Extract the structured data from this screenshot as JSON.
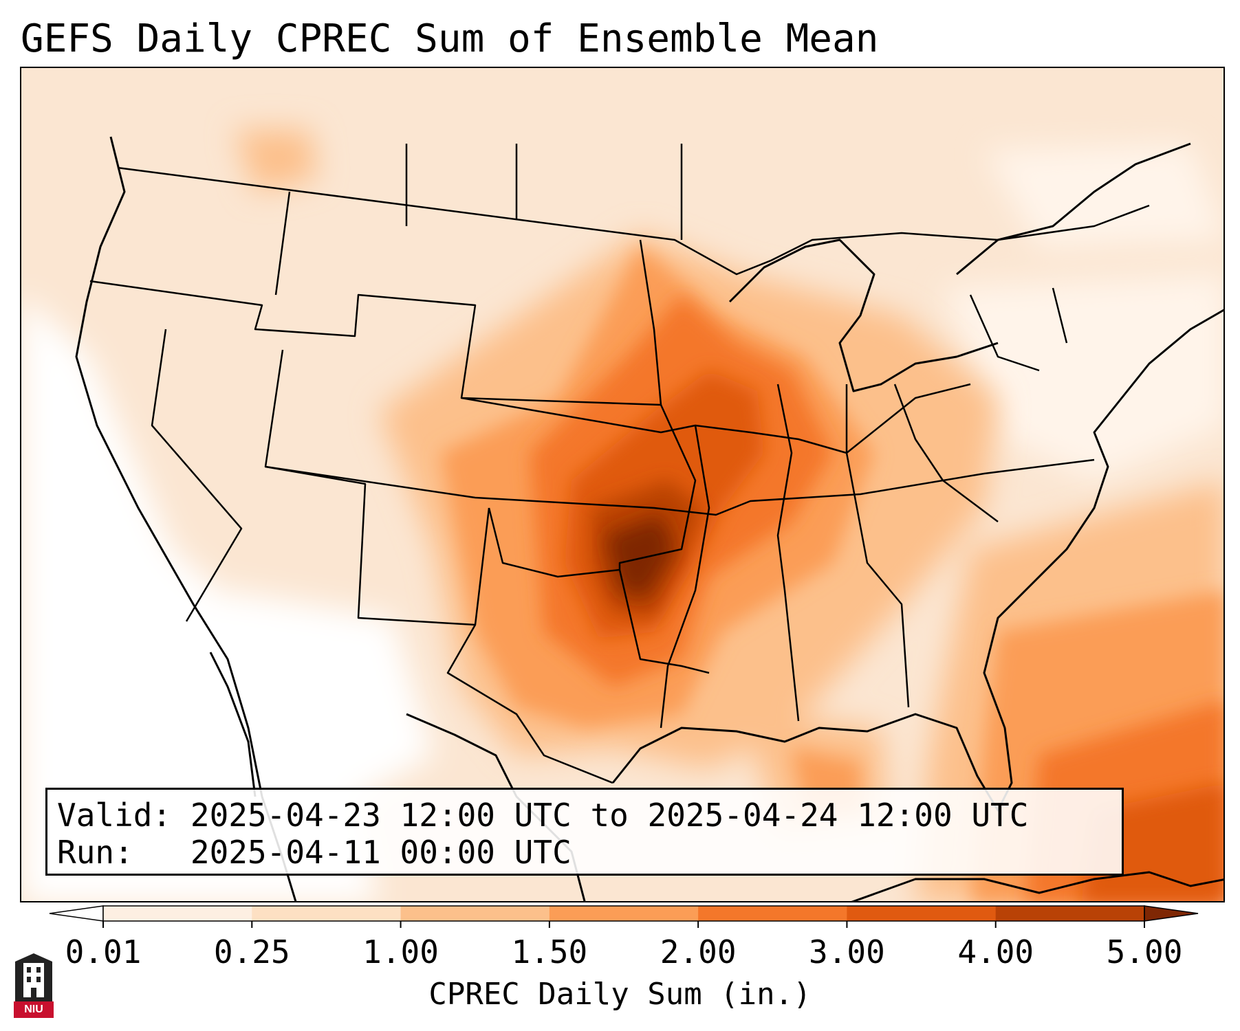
{
  "title": "GEFS Daily CPREC Sum of Ensemble Mean",
  "info": {
    "valid_label": "Valid:",
    "valid_value": "2025-04-23 12:00 UTC to 2025-04-24 12:00 UTC",
    "run_label": "Run:",
    "run_value": "2025-04-11 00:00 UTC"
  },
  "colorbar": {
    "label": "CPREC Daily Sum (in.)",
    "ticks": [
      "0.01",
      "0.25",
      "1.00",
      "1.50",
      "2.00",
      "3.00",
      "4.00",
      "5.00"
    ],
    "colors": [
      "#fdefe2",
      "#fde0c3",
      "#fcc08b",
      "#fb9d56",
      "#f4772a",
      "#e05a10",
      "#b94206"
    ],
    "under_color": "#ffffff",
    "over_color": "#7f2704"
  },
  "logo": {
    "text": "NIU"
  },
  "map": {
    "region": "Contiguous United States",
    "precip_max_region": "Oklahoma",
    "precip_max_level": "5.00"
  }
}
